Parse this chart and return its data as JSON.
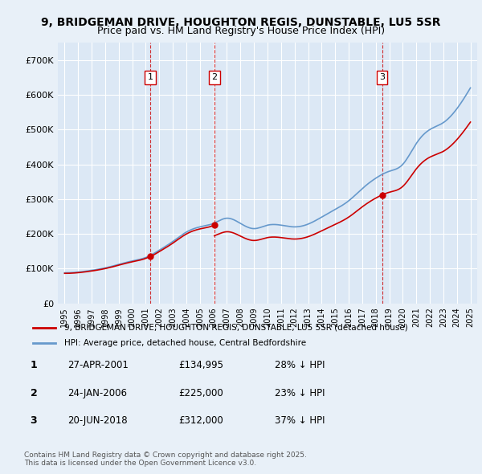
{
  "title_line1": "9, BRIDGEMAN DRIVE, HOUGHTON REGIS, DUNSTABLE, LU5 5SR",
  "title_line2": "Price paid vs. HM Land Registry's House Price Index (HPI)",
  "background_color": "#e8f0f8",
  "plot_bg_color": "#dce8f5",
  "red_color": "#cc0000",
  "blue_color": "#6699cc",
  "vline_color": "#cc0000",
  "grid_color": "#ffffff",
  "ylim": [
    0,
    750000
  ],
  "yticks": [
    0,
    100000,
    200000,
    300000,
    400000,
    500000,
    600000,
    700000
  ],
  "ytick_labels": [
    "£0",
    "£100K",
    "£200K",
    "£300K",
    "£400K",
    "£500K",
    "£600K",
    "£700K"
  ],
  "sale_dates": [
    2001.32,
    2006.07,
    2018.47
  ],
  "sale_prices": [
    134995,
    225000,
    312000
  ],
  "sale_labels": [
    "1",
    "2",
    "3"
  ],
  "legend_red": "9, BRIDGEMAN DRIVE, HOUGHTON REGIS, DUNSTABLE, LU5 5SR (detached house)",
  "legend_blue": "HPI: Average price, detached house, Central Bedfordshire",
  "table_rows": [
    {
      "num": "1",
      "date": "27-APR-2001",
      "price": "£134,995",
      "hpi": "28% ↓ HPI"
    },
    {
      "num": "2",
      "date": "24-JAN-2006",
      "price": "£225,000",
      "hpi": "23% ↓ HPI"
    },
    {
      "num": "3",
      "date": "20-JUN-2018",
      "price": "£312,000",
      "hpi": "37% ↓ HPI"
    }
  ],
  "footnote": "Contains HM Land Registry data © Crown copyright and database right 2025.\nThis data is licensed under the Open Government Licence v3.0."
}
